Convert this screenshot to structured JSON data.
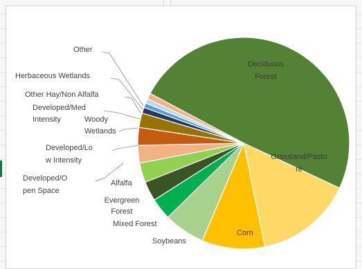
{
  "chart_data": {
    "type": "pie",
    "title": "",
    "slices": [
      {
        "label": "Deciduous Forest",
        "value": 49.2,
        "color": "#548235"
      },
      {
        "label": "Grassland/Pasture",
        "value": 14.8,
        "color": "#ffd966"
      },
      {
        "label": "Corn",
        "value": 9.6,
        "color": "#ffc000"
      },
      {
        "label": "Soybeans",
        "value": 6.3,
        "color": "#a9d18e"
      },
      {
        "label": "Mixed Forest",
        "value": 3.3,
        "color": "#00b050"
      },
      {
        "label": "Evergreen Forest",
        "value": 3.0,
        "color": "#375623"
      },
      {
        "label": "Alfalfa",
        "value": 3.0,
        "color": "#92d050"
      },
      {
        "label": "Developed/Open Space",
        "value": 2.7,
        "color": "#f4b183"
      },
      {
        "label": "Developed/Low Intensity",
        "value": 2.7,
        "color": "#c55a11"
      },
      {
        "label": "Woody Wetlands",
        "value": 2.2,
        "color": "#997300"
      },
      {
        "label": "Developed/Med Intensity",
        "value": 0.9,
        "color": "#203864"
      },
      {
        "label": "Other Hay/Non Alfalfa",
        "value": 0.7,
        "color": "#5b9bd5"
      },
      {
        "label": "Herbaceous Wetlands",
        "value": 0.7,
        "color": "#bdd7ee"
      },
      {
        "label": "Other",
        "value": 0.9,
        "color": "#f4b183"
      }
    ],
    "display_labels": {
      "Deciduous Forest": [
        "Deciduous",
        "Forest"
      ],
      "Grassland/Pasture": [
        "Grassland/Pastu",
        "re"
      ],
      "Corn": [
        "Corn"
      ],
      "Soybeans": [
        "Soybeans"
      ],
      "Mixed Forest": [
        "Mixed Forest"
      ],
      "Evergreen Forest": [
        "Evergreen",
        "Forest"
      ],
      "Alfalfa": [
        "Alfalfa"
      ],
      "Developed/Open Space": [
        "Developed/O",
        "pen Space"
      ],
      "Developed/Low Intensity": [
        "Developed/Lo",
        "w Intensity"
      ],
      "Woody Wetlands": [
        "Woody",
        "Wetlands"
      ],
      "Developed/Med Intensity": [
        "Developed/Med",
        "Intensity"
      ],
      "Other Hay/Non Alfalfa": [
        "Other Hay/Non Alfalfa"
      ],
      "Herbaceous Wetlands": [
        "Herbaceous Wetlands"
      ],
      "Other": [
        "Other"
      ]
    },
    "legend": "none",
    "label_color_inside": "#3a3a3a",
    "label_color_outside": "#404040"
  }
}
